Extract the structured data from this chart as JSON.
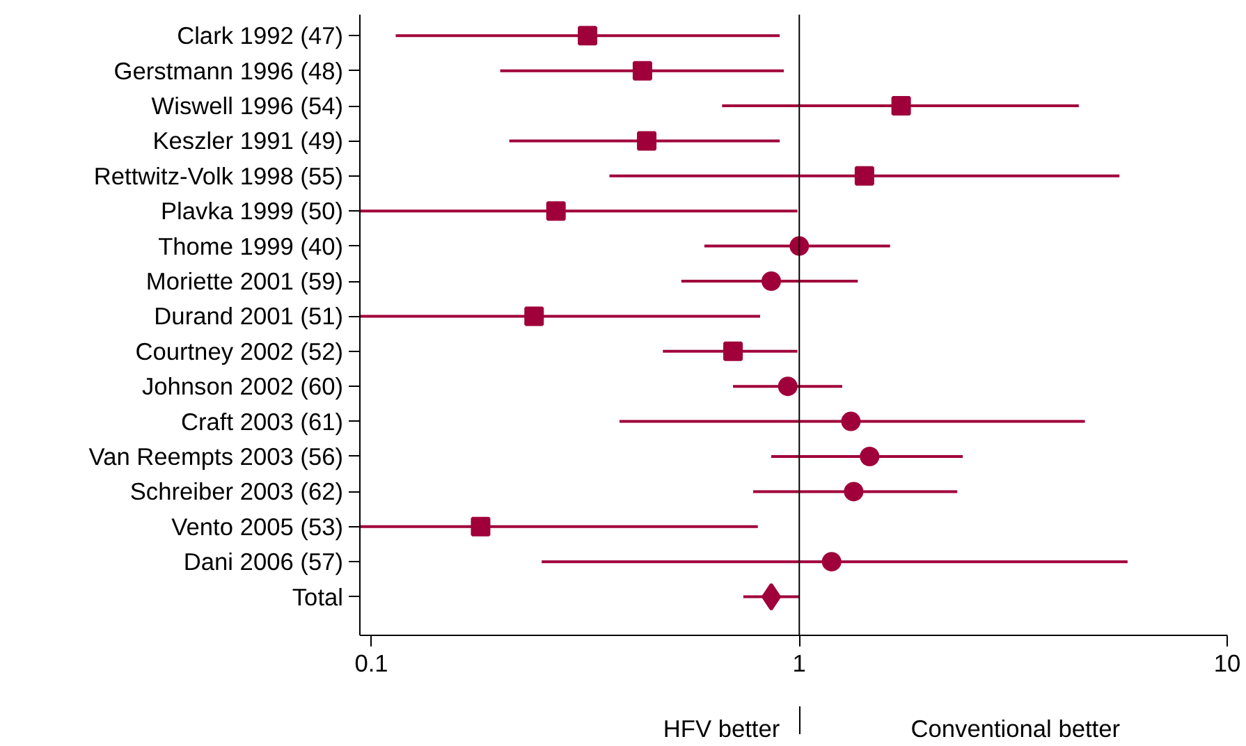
{
  "chart_data": {
    "type": "scatter",
    "orientation": "horizontal",
    "log": "x",
    "categories": [
      "Clark 1992 (47)",
      "Gerstmann 1996 (48)",
      "Wiswell 1996 (54)",
      "Keszler 1991 (49)",
      "Rettwitz-Volk 1998 (55)",
      "Plavka 1999 (50)",
      "Thome 1999 (40)",
      "Moriette 2001 (59)",
      "Durand 2001 (51)",
      "Courtney 2002 (52)",
      "Johnson 2002 (60)",
      "Craft 2003 (61)",
      "Van Reempts 2003 (56)",
      "Schreiber 2003 (62)",
      "Vento 2005 (53)",
      "Dani 2006 (57)",
      "Total"
    ],
    "series": [
      {
        "color": "#a0003a",
        "marker": "square",
        "values": [
          0.32,
          0.43,
          null,
          0.44,
          null,
          0.27,
          null,
          null,
          0.24,
          0.7,
          null,
          null,
          null,
          null,
          0.18,
          null,
          null
        ],
        "errors": [
          [
            0.114,
            0.9
          ],
          [
            0.2,
            0.92
          ],
          null,
          [
            0.21,
            0.9
          ],
          null,
          [
            0.094,
            0.99
          ],
          null,
          null,
          [
            0.094,
            0.81
          ],
          [
            0.48,
            0.99
          ],
          null,
          null,
          null,
          null,
          [
            0.094,
            0.8
          ],
          null,
          null
        ]
      },
      {
        "color": "#a0003a",
        "marker": "square",
        "values": [
          null,
          null,
          1.73,
          null,
          1.42,
          null,
          null,
          null,
          null,
          null,
          null,
          null,
          null,
          null,
          null,
          null,
          null
        ],
        "errors": [
          null,
          null,
          [
            0.66,
            4.5
          ],
          null,
          [
            0.36,
            5.6
          ],
          null,
          null,
          null,
          null,
          null,
          null,
          null,
          null,
          null,
          null,
          null,
          null
        ]
      },
      {
        "color": "#a0003a",
        "marker": "circle",
        "values": [
          null,
          null,
          null,
          null,
          null,
          null,
          1.0,
          null,
          null,
          null,
          0.94,
          null,
          1.46,
          null,
          null,
          1.19,
          null
        ],
        "errors": [
          null,
          null,
          null,
          null,
          null,
          null,
          [
            0.6,
            1.63
          ],
          null,
          null,
          null,
          [
            0.7,
            1.26
          ],
          null,
          [
            0.86,
            2.41
          ],
          null,
          null,
          [
            0.25,
            5.85
          ],
          null
        ]
      },
      {
        "color": "#a0003a",
        "marker": "circle",
        "values": [
          null,
          null,
          null,
          null,
          null,
          null,
          null,
          0.86,
          null,
          null,
          null,
          1.32,
          null,
          1.34,
          null,
          null,
          null
        ],
        "errors": [
          null,
          null,
          null,
          null,
          null,
          null,
          null,
          [
            0.53,
            1.37
          ],
          null,
          null,
          null,
          [
            0.38,
            4.65
          ],
          null,
          [
            0.78,
            2.34
          ],
          null,
          null,
          null
        ]
      },
      {
        "color": "#a0003a",
        "marker": "diamond",
        "values": [
          null,
          null,
          null,
          null,
          null,
          null,
          null,
          null,
          null,
          null,
          null,
          null,
          null,
          null,
          null,
          null,
          0.86
        ],
        "errors": [
          null,
          null,
          null,
          null,
          null,
          null,
          null,
          null,
          null,
          null,
          null,
          null,
          null,
          null,
          null,
          null,
          [
            0.74,
            1.0
          ]
        ]
      }
    ],
    "xlim": [
      0.094,
      10
    ],
    "xticks": [
      0.1,
      1,
      10
    ],
    "ref_lines": [
      {
        "axis": "x",
        "value": 1,
        "label": null,
        "color": "#000000"
      }
    ],
    "annotations": [
      "HFV better",
      "Conventional better"
    ],
    "grid": false
  }
}
